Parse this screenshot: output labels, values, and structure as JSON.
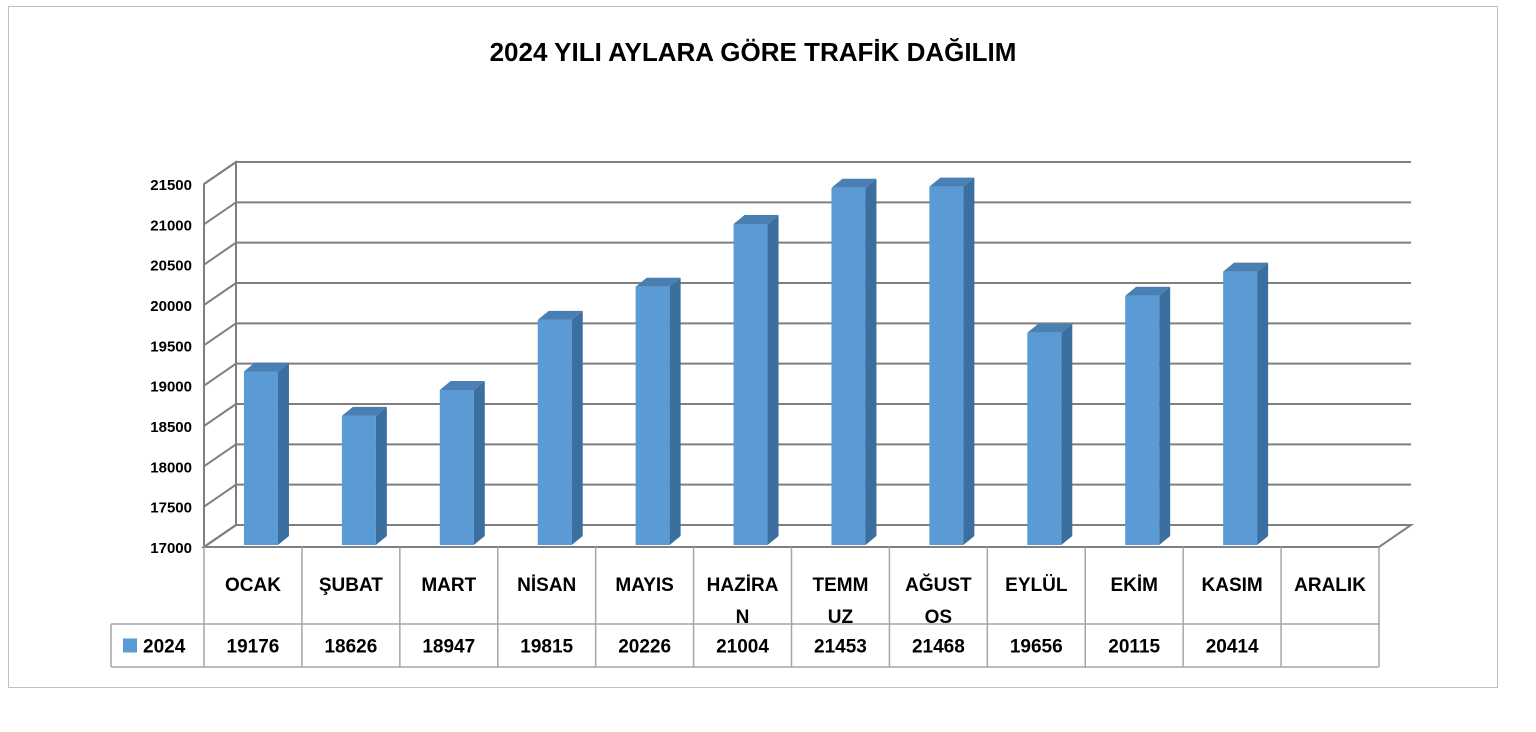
{
  "chart_data": {
    "type": "bar",
    "title": "2024 YILI AYLARA  GÖRE TRAFİK DAĞILIM",
    "categories": [
      [
        "OCAK"
      ],
      [
        "ŞUBAT"
      ],
      [
        "MART"
      ],
      [
        "NİSAN"
      ],
      [
        "MAYIS"
      ],
      [
        "HAZİRA",
        "N"
      ],
      [
        "TEMM",
        "UZ"
      ],
      [
        "AĞUST",
        "OS"
      ],
      [
        "EYLÜL"
      ],
      [
        "EKİM"
      ],
      [
        "KASIM"
      ],
      [
        "ARALIK"
      ]
    ],
    "series": [
      {
        "name": "2024",
        "color": "#5b9bd5",
        "values": [
          19176,
          18626,
          18947,
          19815,
          20226,
          21004,
          21453,
          21468,
          19656,
          20115,
          20414,
          null
        ]
      }
    ],
    "ylim": [
      17000,
      21500
    ],
    "ytick_step": 500,
    "grid": true,
    "data_table": true,
    "legend": "data-table-left"
  }
}
